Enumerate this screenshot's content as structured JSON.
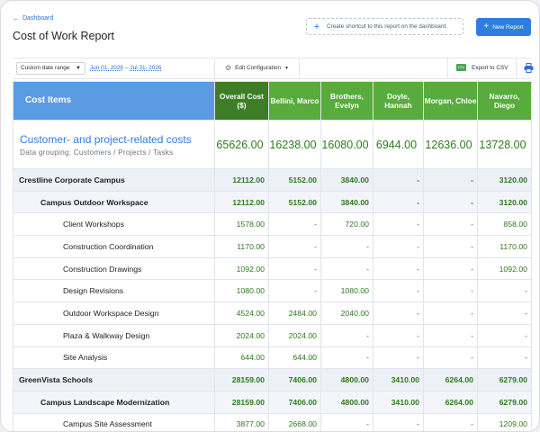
{
  "header": {
    "breadcrumb": "Dashboard",
    "title": "Cost of Work Report",
    "shortcut_label": "Create shortcut to this report on the dashboard",
    "new_report_label": "New Report"
  },
  "toolbar": {
    "range_label": "Custom date range",
    "date_from": "Jun 01, 2026",
    "date_sep": "–",
    "date_to": "Jul 31, 2026",
    "edit_config_label": "Edit Configuration",
    "export_label": "Export to CSV",
    "csv_icon_text": "CSV"
  },
  "table": {
    "columns": [
      "Cost Items",
      "Overall Cost ($)",
      "Bellini, Marco",
      "Brothers, Evelyn",
      "Doyle, Hannah",
      "Morgan, Chloe",
      "Navarro, Diego"
    ],
    "summary": {
      "title": "Customer- and project-related costs",
      "subtitle": "Data grouping: Customers / Projects / Tasks",
      "values": [
        "65626.00",
        "16238.00",
        "16080.00",
        "6944.00",
        "12636.00",
        "13728.00"
      ]
    },
    "rows": [
      {
        "level": 0,
        "label": "Crestline Corporate Campus",
        "values": [
          "12112.00",
          "5152.00",
          "3840.00",
          "-",
          "-",
          "3120.00"
        ]
      },
      {
        "level": 1,
        "label": "Campus Outdoor Workspace",
        "values": [
          "12112.00",
          "5152.00",
          "3840.00",
          "-",
          "-",
          "3120.00"
        ]
      },
      {
        "level": 2,
        "label": "Client Workshops",
        "values": [
          "1578.00",
          "-",
          "720.00",
          "-",
          "-",
          "858.00"
        ]
      },
      {
        "level": 2,
        "label": "Construction Coordination",
        "values": [
          "1170.00",
          "-",
          "-",
          "-",
          "-",
          "1170.00"
        ]
      },
      {
        "level": 2,
        "label": "Construction Drawings",
        "values": [
          "1092.00",
          "-",
          "-",
          "-",
          "-",
          "1092.00"
        ]
      },
      {
        "level": 2,
        "label": "Design Revisions",
        "values": [
          "1080.00",
          "-",
          "1080.00",
          "-",
          "-",
          "-"
        ]
      },
      {
        "level": 2,
        "label": "Outdoor Workspace Design",
        "values": [
          "4524.00",
          "2484.00",
          "2040.00",
          "-",
          "-",
          "-"
        ]
      },
      {
        "level": 2,
        "label": "Plaza & Walkway Design",
        "values": [
          "2024.00",
          "2024.00",
          "-",
          "-",
          "-",
          "-"
        ]
      },
      {
        "level": 2,
        "label": "Site Analysis",
        "values": [
          "644.00",
          "644.00",
          "-",
          "-",
          "-",
          "-"
        ]
      },
      {
        "level": 0,
        "label": "GreenVista Schools",
        "values": [
          "28159.00",
          "7406.00",
          "4800.00",
          "3410.00",
          "6264.00",
          "6279.00"
        ]
      },
      {
        "level": 1,
        "label": "Campus Landscape Modernization",
        "values": [
          "28159.00",
          "7406.00",
          "4800.00",
          "3410.00",
          "6264.00",
          "6279.00"
        ]
      },
      {
        "level": 2,
        "label": "Campus Site Assessment",
        "values": [
          "3877.00",
          "2668.00",
          "-",
          "-",
          "-",
          "1209.00"
        ]
      }
    ]
  },
  "colors": {
    "accent": "#2f7de0",
    "cost_items_header": "#5b9be3",
    "overall_header": "#3d7d27",
    "person_header": "#58ab3d",
    "value_text": "#2e7a1e"
  },
  "icons": {
    "breadcrumb": "arrow-left-icon",
    "shortcut": "plus-icon",
    "new_report": "plus-icon",
    "range": "chevron-down-icon",
    "edit_config": "gear-icon",
    "export": "csv-file-icon",
    "print": "printer-icon"
  }
}
